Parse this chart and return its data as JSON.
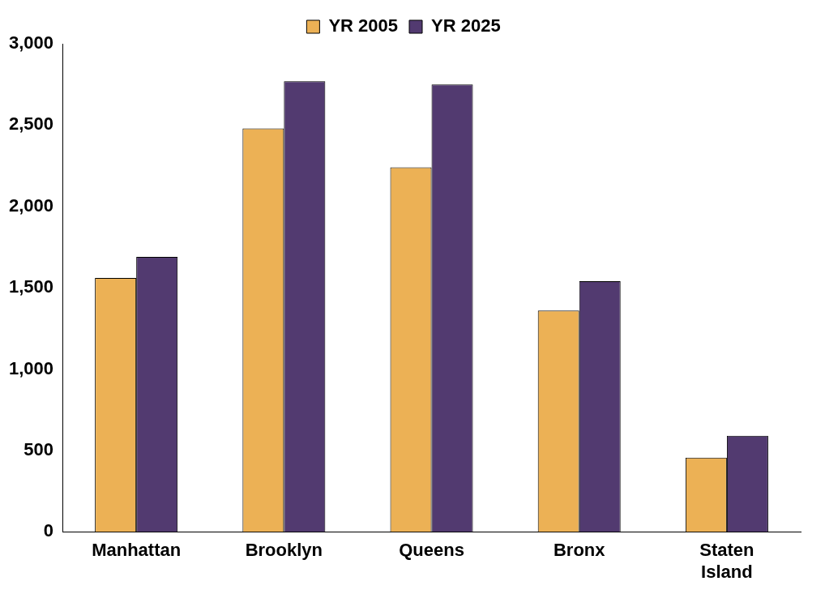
{
  "chart_data": {
    "type": "bar",
    "categories": [
      "Manhattan",
      "Brooklyn",
      "Queens",
      "Bronx",
      "Staten Island"
    ],
    "series": [
      {
        "name": "YR 2005",
        "color": "#ecb155",
        "values": [
          1560,
          2480,
          2240,
          1360,
          455
        ]
      },
      {
        "name": "YR 2025",
        "color": "#523a70",
        "values": [
          1690,
          2770,
          2750,
          1540,
          590
        ]
      }
    ],
    "ylim": [
      0,
      3000
    ],
    "yticks": [
      0,
      500,
      {
        "value": 1000,
        "label": "1,000"
      },
      {
        "value": 1500,
        "label": "1,500"
      },
      {
        "value": 2000,
        "label": "2,000"
      },
      {
        "value": 2500,
        "label": "2,500"
      },
      {
        "value": 3000,
        "label": "3,000"
      }
    ],
    "grid": false,
    "legend": "top"
  }
}
